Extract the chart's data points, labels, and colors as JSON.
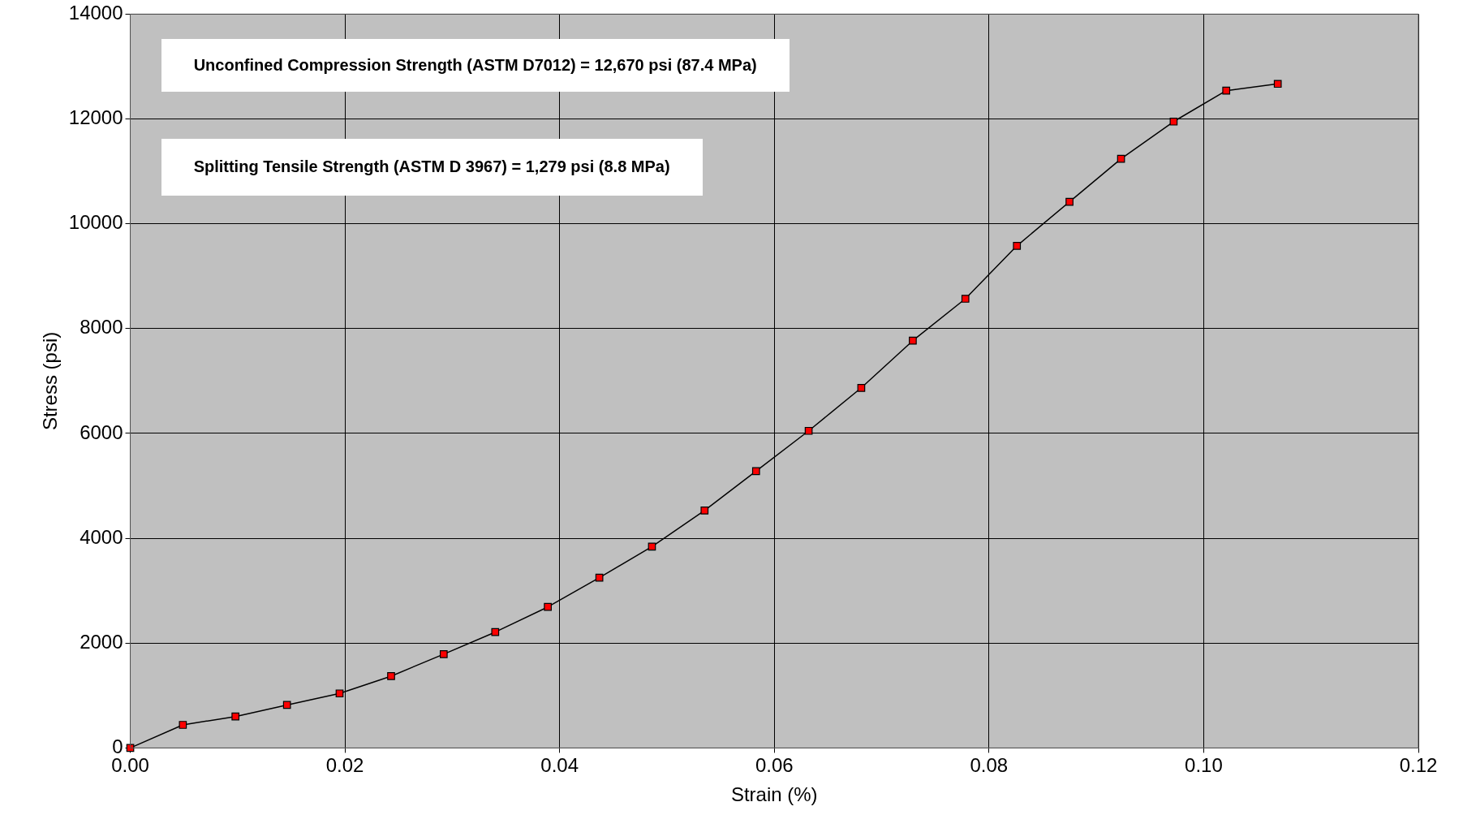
{
  "chart_data": {
    "type": "line",
    "xlabel": "Strain (%)",
    "ylabel": "Stress (psi)",
    "x": [
      0,
      0.0049,
      0.0098,
      0.0146,
      0.0195,
      0.0243,
      0.0292,
      0.034,
      0.0389,
      0.0437,
      0.0486,
      0.0535,
      0.0583,
      0.0632,
      0.0681,
      0.0729,
      0.0778,
      0.0826,
      0.0875,
      0.0923,
      0.0972,
      0.1021,
      0.1069
    ],
    "series": [
      {
        "color": "#ff0000",
        "values": [
          0,
          440,
          600,
          820,
          1040,
          1370,
          1790,
          2210,
          2690,
          3250,
          3840,
          4530,
          5280,
          6050,
          6870,
          7770,
          8570,
          9580,
          10420,
          11240,
          11950,
          12540,
          12670
        ]
      }
    ],
    "xlim": [
      0,
      0.12
    ],
    "xticks": [
      {
        "value": 0,
        "label": "0.00"
      },
      {
        "value": 0.02,
        "label": "0.02"
      },
      {
        "value": 0.04,
        "label": "0.04"
      },
      {
        "value": 0.06,
        "label": "0.06"
      },
      {
        "value": 0.08,
        "label": "0.08"
      },
      {
        "value": 0.1,
        "label": "0.10"
      },
      {
        "value": 0.12,
        "label": "0.12"
      }
    ],
    "ylim": [
      0,
      14000
    ],
    "yticks": [
      0,
      2000,
      4000,
      6000,
      8000,
      10000,
      12000,
      14000
    ],
    "grid": true,
    "marker": "square",
    "line_style": "solid",
    "legend": false,
    "annotations": [
      "Unconfined Compression Strength (ASTM D7012) = 12,670 psi (87.4 MPa)",
      "Splitting Tensile Strength (ASTM D 3967) = 1,279 psi (8.8 MPa)"
    ]
  }
}
